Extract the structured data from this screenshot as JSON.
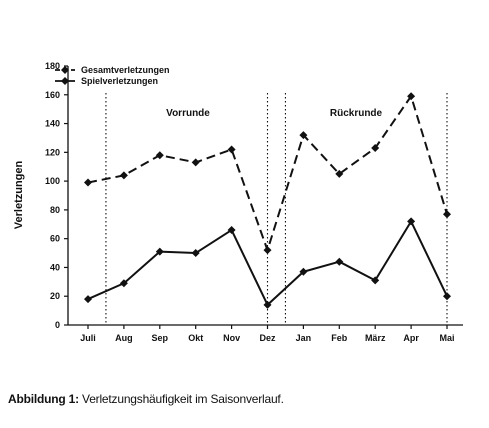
{
  "chart_data": {
    "type": "line",
    "categories": [
      "Juli",
      "Aug",
      "Sep",
      "Okt",
      "Nov",
      "Dez",
      "Jan",
      "Feb",
      "März",
      "Apr",
      "Mai"
    ],
    "series": [
      {
        "name": "Gesamtverletzungen",
        "values": [
          99,
          104,
          118,
          113,
          122,
          52,
          132,
          105,
          123,
          159,
          77
        ],
        "line_style": "dashed",
        "marker": "diamond",
        "color": "#111111"
      },
      {
        "name": "Spielverletzungen",
        "values": [
          18,
          29,
          51,
          50,
          66,
          14,
          37,
          44,
          31,
          72,
          20
        ],
        "line_style": "solid",
        "marker": "diamond",
        "color": "#111111"
      }
    ],
    "title": "",
    "xlabel": "",
    "ylabel": "Verletzungen",
    "ylim": [
      0,
      180
    ],
    "yticks": [
      "0",
      "20",
      "40",
      "60",
      "80",
      "100",
      "120",
      "140",
      "160",
      "180"
    ],
    "grid": false,
    "legend_position": "top-left",
    "annotations": {
      "vorrunde": "Vorrunde",
      "rueckrunde": "Rückrunde"
    },
    "dividers_between": [
      [
        "Juli",
        "Aug"
      ],
      [
        "Nov",
        "Dez"
      ],
      [
        "Dez",
        "Jan"
      ],
      [
        "Apr",
        "Mai"
      ]
    ]
  },
  "caption": {
    "lead": "Abbildung 1:",
    "text": " Verletzungshäufigkeit im Saisonverlauf."
  }
}
